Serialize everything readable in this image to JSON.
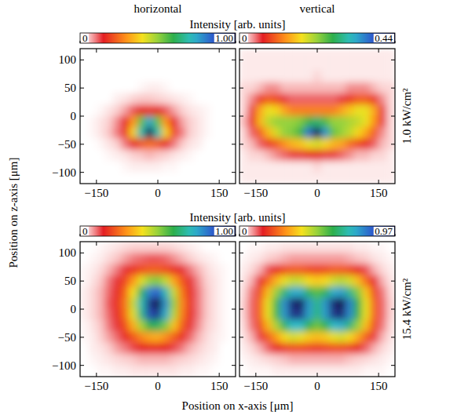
{
  "figure": {
    "columns": [
      "horizontal",
      "vertical"
    ],
    "rows": [
      {
        "label": "1.0 kW/cm²",
        "colorbar_label": "Intensity [arb. units]"
      },
      {
        "label": "15.4 kW/cm²",
        "colorbar_label": "Intensity [arb. units]"
      }
    ],
    "xlabel": "Position on x-axis [μm]",
    "ylabel": "Position on z-axis [μm]"
  },
  "chart_data": [
    {
      "type": "heatmap",
      "xlim": [
        -190,
        190
      ],
      "ylim": [
        -120,
        120
      ],
      "xticks": [
        {
          "value": -150,
          "label": "−150"
        },
        0,
        150
      ],
      "yticks": [
        {
          "value": -100,
          "label": "−100"
        },
        {
          "value": -50,
          "label": "−50"
        },
        0,
        50,
        100
      ],
      "x": [
        -180,
        -160,
        -140,
        -120,
        -100,
        -80,
        -60,
        -40,
        -20,
        0,
        20,
        40,
        60,
        80,
        100,
        120,
        140,
        160,
        180
      ],
      "y": [
        110,
        90,
        70,
        50,
        30,
        10,
        -10,
        -30,
        -50,
        -70,
        -90,
        -110
      ],
      "cells": [
        [
          0,
          0,
          0,
          0,
          0,
          0,
          0,
          0,
          0,
          0,
          0,
          0,
          0,
          0,
          0,
          0,
          0,
          0,
          0
        ],
        [
          0,
          0,
          0,
          0,
          0,
          0,
          0,
          0,
          0,
          0,
          0,
          0,
          0,
          0,
          0,
          0,
          0,
          0,
          0
        ],
        [
          0,
          0,
          0,
          0,
          0,
          0,
          0,
          0,
          0,
          0,
          0,
          0,
          0,
          0,
          0,
          0,
          0,
          0,
          0
        ],
        [
          0,
          0,
          0,
          0,
          0,
          0,
          0,
          0.01,
          0.02,
          0.02,
          0.01,
          0,
          0,
          0,
          0,
          0,
          0,
          0,
          0
        ],
        [
          0,
          0,
          0,
          0,
          0.02,
          0.03,
          0.05,
          0.06,
          0.06,
          0.05,
          0.04,
          0.03,
          0.02,
          0.01,
          0,
          0,
          0,
          0,
          0
        ],
        [
          0,
          0,
          0.01,
          0.03,
          0.05,
          0.08,
          0.12,
          0.16,
          0.18,
          0.16,
          0.12,
          0.08,
          0.05,
          0.03,
          0.02,
          0.01,
          0,
          0,
          0
        ],
        [
          0,
          0.01,
          0.03,
          0.05,
          0.09,
          0.15,
          0.3,
          0.55,
          0.75,
          0.55,
          0.3,
          0.15,
          0.08,
          0.05,
          0.03,
          0.01,
          0,
          0,
          0
        ],
        [
          0,
          0.01,
          0.03,
          0.06,
          0.1,
          0.18,
          0.38,
          0.7,
          1,
          0.7,
          0.38,
          0.2,
          0.1,
          0.05,
          0.03,
          0.01,
          0,
          0,
          0
        ],
        [
          0,
          0,
          0.01,
          0.03,
          0.05,
          0.1,
          0.15,
          0.22,
          0.25,
          0.22,
          0.15,
          0.1,
          0.06,
          0.03,
          0.02,
          0,
          0,
          0,
          0
        ],
        [
          0,
          0,
          0,
          0.01,
          0.02,
          0.03,
          0.05,
          0.06,
          0.07,
          0.06,
          0.05,
          0.03,
          0.02,
          0.01,
          0,
          0,
          0,
          0,
          0
        ],
        [
          0,
          0,
          0,
          0,
          0,
          0.01,
          0.02,
          0.02,
          0.02,
          0.02,
          0.01,
          0.01,
          0,
          0,
          0,
          0,
          0,
          0,
          0
        ],
        [
          0,
          0,
          0,
          0,
          0,
          0,
          0,
          0,
          0,
          0,
          0,
          0,
          0,
          0,
          0,
          0,
          0,
          0,
          0
        ]
      ],
      "colorbar": {
        "range": [
          0,
          1
        ],
        "ticks": [
          0,
          {
            "value": 1,
            "label": "1.00"
          }
        ]
      }
    },
    {
      "type": "heatmap",
      "xlim": [
        -190,
        190
      ],
      "ylim": [
        -120,
        120
      ],
      "tick_labels": "x",
      "xticks": [
        {
          "value": -150,
          "label": "−150"
        },
        0,
        150
      ],
      "yticks": [
        -100,
        -50,
        0,
        50,
        100
      ],
      "x": [
        -180,
        -160,
        -140,
        -120,
        -100,
        -80,
        -60,
        -40,
        -20,
        0,
        20,
        40,
        60,
        80,
        100,
        120,
        140,
        160,
        180
      ],
      "y": [
        110,
        90,
        70,
        50,
        30,
        10,
        -10,
        -30,
        -50,
        -70,
        -90,
        -110
      ],
      "cells": [
        [
          0.01,
          0.01,
          0.01,
          0.01,
          0.01,
          0.01,
          0.01,
          0.01,
          0.01,
          0.01,
          0.01,
          0.01,
          0.01,
          0.01,
          0.01,
          0.01,
          0.01,
          0.01,
          0.01
        ],
        [
          0.01,
          0.01,
          0.01,
          0.01,
          0.01,
          0.01,
          0.01,
          0.01,
          0.01,
          0.01,
          0.01,
          0.01,
          0.01,
          0.01,
          0.01,
          0.01,
          0.01,
          0.01,
          0.01
        ],
        [
          0.01,
          0.01,
          0.01,
          0.01,
          0.01,
          0.01,
          0.01,
          0.01,
          0.01,
          0.02,
          0.01,
          0.01,
          0.01,
          0.01,
          0.01,
          0.01,
          0.01,
          0.01,
          0.01
        ],
        [
          0.02,
          0.02,
          0.03,
          0.04,
          0.04,
          0.03,
          0.03,
          0.03,
          0.03,
          0.03,
          0.03,
          0.03,
          0.03,
          0.04,
          0.04,
          0.04,
          0.03,
          0.02,
          0.02
        ],
        [
          0.02,
          0.04,
          0.08,
          0.1,
          0.09,
          0.06,
          0.05,
          0.05,
          0.05,
          0.05,
          0.05,
          0.05,
          0.06,
          0.08,
          0.1,
          0.1,
          0.08,
          0.04,
          0.02
        ],
        [
          0.02,
          0.06,
          0.14,
          0.18,
          0.17,
          0.14,
          0.12,
          0.12,
          0.12,
          0.12,
          0.12,
          0.12,
          0.14,
          0.16,
          0.18,
          0.18,
          0.14,
          0.06,
          0.02
        ],
        [
          0.03,
          0.07,
          0.15,
          0.2,
          0.22,
          0.22,
          0.22,
          0.23,
          0.26,
          0.28,
          0.25,
          0.22,
          0.22,
          0.21,
          0.2,
          0.18,
          0.13,
          0.06,
          0.02
        ],
        [
          0.02,
          0.05,
          0.1,
          0.15,
          0.19,
          0.22,
          0.23,
          0.26,
          0.36,
          0.44,
          0.34,
          0.24,
          0.22,
          0.2,
          0.17,
          0.14,
          0.1,
          0.04,
          0.02
        ],
        [
          0.02,
          0.03,
          0.05,
          0.08,
          0.1,
          0.13,
          0.15,
          0.16,
          0.18,
          0.19,
          0.17,
          0.15,
          0.14,
          0.11,
          0.09,
          0.07,
          0.05,
          0.03,
          0.02
        ],
        [
          0.01,
          0.02,
          0.02,
          0.03,
          0.04,
          0.05,
          0.06,
          0.06,
          0.07,
          0.07,
          0.06,
          0.06,
          0.05,
          0.04,
          0.03,
          0.03,
          0.02,
          0.02,
          0.01
        ],
        [
          0.01,
          0.01,
          0.01,
          0.01,
          0.01,
          0.01,
          0.01,
          0.01,
          0.01,
          0.02,
          0.01,
          0.01,
          0.01,
          0.01,
          0.01,
          0.01,
          0.01,
          0.01,
          0.01
        ],
        [
          0.01,
          0.01,
          0.01,
          0.01,
          0.01,
          0.01,
          0.01,
          0.01,
          0.01,
          0.01,
          0.01,
          0.01,
          0.01,
          0.01,
          0.01,
          0.01,
          0.01,
          0.01,
          0.01
        ]
      ],
      "colorbar": {
        "range": [
          0,
          0.44
        ],
        "ticks": [
          0,
          0.44
        ]
      }
    },
    {
      "type": "heatmap",
      "xlim": [
        -190,
        190
      ],
      "ylim": [
        -120,
        120
      ],
      "xticks": [
        {
          "value": -150,
          "label": "−150"
        },
        0,
        150
      ],
      "yticks": [
        {
          "value": -100,
          "label": "−100"
        },
        {
          "value": -50,
          "label": "−50"
        },
        0,
        50,
        100
      ],
      "x": [
        -180,
        -160,
        -140,
        -120,
        -100,
        -80,
        -60,
        -40,
        -20,
        0,
        20,
        40,
        60,
        80,
        100,
        120,
        140,
        160,
        180
      ],
      "y": [
        110,
        90,
        70,
        50,
        30,
        10,
        -10,
        -30,
        -50,
        -70,
        -90,
        -110
      ],
      "cells": [
        [
          0,
          0,
          0.01,
          0.02,
          0.03,
          0.04,
          0.05,
          0.05,
          0.05,
          0.05,
          0.05,
          0.04,
          0.03,
          0.02,
          0.01,
          0,
          0,
          0,
          0
        ],
        [
          0,
          0.01,
          0.02,
          0.04,
          0.06,
          0.08,
          0.1,
          0.11,
          0.12,
          0.12,
          0.11,
          0.09,
          0.07,
          0.05,
          0.03,
          0.02,
          0.01,
          0,
          0
        ],
        [
          0.01,
          0.02,
          0.04,
          0.07,
          0.1,
          0.14,
          0.18,
          0.21,
          0.23,
          0.23,
          0.21,
          0.18,
          0.14,
          0.1,
          0.07,
          0.04,
          0.02,
          0.01,
          0
        ],
        [
          0.01,
          0.03,
          0.06,
          0.1,
          0.14,
          0.2,
          0.3,
          0.42,
          0.5,
          0.52,
          0.45,
          0.32,
          0.22,
          0.14,
          0.09,
          0.05,
          0.03,
          0.01,
          0
        ],
        [
          0.02,
          0.04,
          0.07,
          0.11,
          0.16,
          0.24,
          0.4,
          0.62,
          0.8,
          0.85,
          0.7,
          0.45,
          0.26,
          0.16,
          0.1,
          0.06,
          0.03,
          0.01,
          0
        ],
        [
          0.02,
          0.04,
          0.07,
          0.12,
          0.17,
          0.26,
          0.45,
          0.7,
          0.92,
          1,
          0.78,
          0.5,
          0.28,
          0.17,
          0.1,
          0.06,
          0.03,
          0.01,
          0
        ],
        [
          0.02,
          0.04,
          0.07,
          0.11,
          0.16,
          0.25,
          0.42,
          0.66,
          0.88,
          0.92,
          0.74,
          0.47,
          0.27,
          0.16,
          0.1,
          0.06,
          0.03,
          0.01,
          0
        ],
        [
          0.01,
          0.03,
          0.06,
          0.1,
          0.14,
          0.21,
          0.33,
          0.48,
          0.6,
          0.62,
          0.52,
          0.36,
          0.23,
          0.14,
          0.09,
          0.05,
          0.03,
          0.01,
          0
        ],
        [
          0.01,
          0.02,
          0.05,
          0.08,
          0.11,
          0.16,
          0.22,
          0.28,
          0.32,
          0.33,
          0.29,
          0.23,
          0.17,
          0.11,
          0.07,
          0.04,
          0.02,
          0.01,
          0
        ],
        [
          0,
          0.02,
          0.03,
          0.05,
          0.08,
          0.1,
          0.13,
          0.15,
          0.16,
          0.16,
          0.15,
          0.13,
          0.1,
          0.07,
          0.05,
          0.03,
          0.02,
          0,
          0
        ],
        [
          0,
          0.01,
          0.02,
          0.03,
          0.04,
          0.05,
          0.06,
          0.07,
          0.07,
          0.07,
          0.07,
          0.06,
          0.05,
          0.04,
          0.03,
          0.02,
          0.01,
          0,
          0
        ],
        [
          0,
          0,
          0.01,
          0.01,
          0.02,
          0.02,
          0.03,
          0.03,
          0.03,
          0.03,
          0.03,
          0.03,
          0.02,
          0.02,
          0.01,
          0.01,
          0,
          0,
          0
        ]
      ],
      "colorbar": {
        "range": [
          0,
          1
        ],
        "ticks": [
          0,
          {
            "value": 1,
            "label": "1.00"
          }
        ]
      }
    },
    {
      "type": "heatmap",
      "xlim": [
        -190,
        190
      ],
      "ylim": [
        -120,
        120
      ],
      "tick_labels": "x",
      "xticks": [
        {
          "value": -150,
          "label": "−150"
        },
        0,
        150
      ],
      "yticks": [
        -100,
        -50,
        0,
        50,
        100
      ],
      "x": [
        -180,
        -160,
        -140,
        -120,
        -100,
        -80,
        -60,
        -40,
        -20,
        0,
        20,
        40,
        60,
        80,
        100,
        120,
        140,
        160,
        180
      ],
      "y": [
        110,
        90,
        70,
        50,
        30,
        10,
        -10,
        -30,
        -50,
        -70,
        -90,
        -110
      ],
      "cells": [
        [
          0,
          0.01,
          0.01,
          0.02,
          0.02,
          0.03,
          0.03,
          0.03,
          0.03,
          0.03,
          0.03,
          0.03,
          0.03,
          0.03,
          0.02,
          0.02,
          0.01,
          0.01,
          0
        ],
        [
          0.01,
          0.02,
          0.03,
          0.05,
          0.06,
          0.07,
          0.08,
          0.08,
          0.08,
          0.08,
          0.08,
          0.08,
          0.08,
          0.07,
          0.06,
          0.05,
          0.03,
          0.02,
          0.01
        ],
        [
          0.02,
          0.04,
          0.07,
          0.12,
          0.16,
          0.2,
          0.22,
          0.22,
          0.2,
          0.19,
          0.2,
          0.22,
          0.22,
          0.2,
          0.16,
          0.12,
          0.07,
          0.04,
          0.02
        ],
        [
          0.03,
          0.07,
          0.14,
          0.24,
          0.33,
          0.4,
          0.44,
          0.43,
          0.38,
          0.36,
          0.38,
          0.43,
          0.45,
          0.42,
          0.34,
          0.24,
          0.14,
          0.07,
          0.03
        ],
        [
          0.04,
          0.1,
          0.2,
          0.34,
          0.48,
          0.62,
          0.72,
          0.72,
          0.6,
          0.54,
          0.6,
          0.72,
          0.74,
          0.64,
          0.5,
          0.35,
          0.2,
          0.1,
          0.04
        ],
        [
          0.05,
          0.11,
          0.23,
          0.4,
          0.56,
          0.76,
          0.92,
          0.95,
          0.75,
          0.64,
          0.75,
          0.92,
          0.97,
          0.78,
          0.58,
          0.4,
          0.23,
          0.11,
          0.05
        ],
        [
          0.05,
          0.11,
          0.23,
          0.4,
          0.56,
          0.75,
          0.9,
          0.9,
          0.74,
          0.63,
          0.74,
          0.9,
          0.92,
          0.77,
          0.57,
          0.4,
          0.23,
          0.11,
          0.05
        ],
        [
          0.04,
          0.1,
          0.2,
          0.33,
          0.46,
          0.6,
          0.7,
          0.7,
          0.58,
          0.52,
          0.58,
          0.7,
          0.72,
          0.62,
          0.48,
          0.34,
          0.2,
          0.1,
          0.04
        ],
        [
          0.03,
          0.07,
          0.13,
          0.22,
          0.3,
          0.38,
          0.42,
          0.4,
          0.36,
          0.34,
          0.36,
          0.4,
          0.42,
          0.38,
          0.31,
          0.22,
          0.13,
          0.07,
          0.03
        ],
        [
          0.02,
          0.04,
          0.07,
          0.11,
          0.15,
          0.18,
          0.2,
          0.2,
          0.19,
          0.18,
          0.19,
          0.2,
          0.2,
          0.18,
          0.15,
          0.11,
          0.07,
          0.04,
          0.02
        ],
        [
          0.01,
          0.02,
          0.03,
          0.04,
          0.05,
          0.06,
          0.07,
          0.07,
          0.07,
          0.07,
          0.07,
          0.07,
          0.07,
          0.06,
          0.05,
          0.04,
          0.03,
          0.02,
          0.01
        ],
        [
          0,
          0.01,
          0.01,
          0.01,
          0.02,
          0.02,
          0.02,
          0.02,
          0.02,
          0.02,
          0.02,
          0.02,
          0.02,
          0.02,
          0.02,
          0.01,
          0.01,
          0.01,
          0
        ]
      ],
      "colorbar": {
        "range": [
          0,
          0.97
        ],
        "ticks": [
          0,
          0.97
        ]
      }
    }
  ]
}
